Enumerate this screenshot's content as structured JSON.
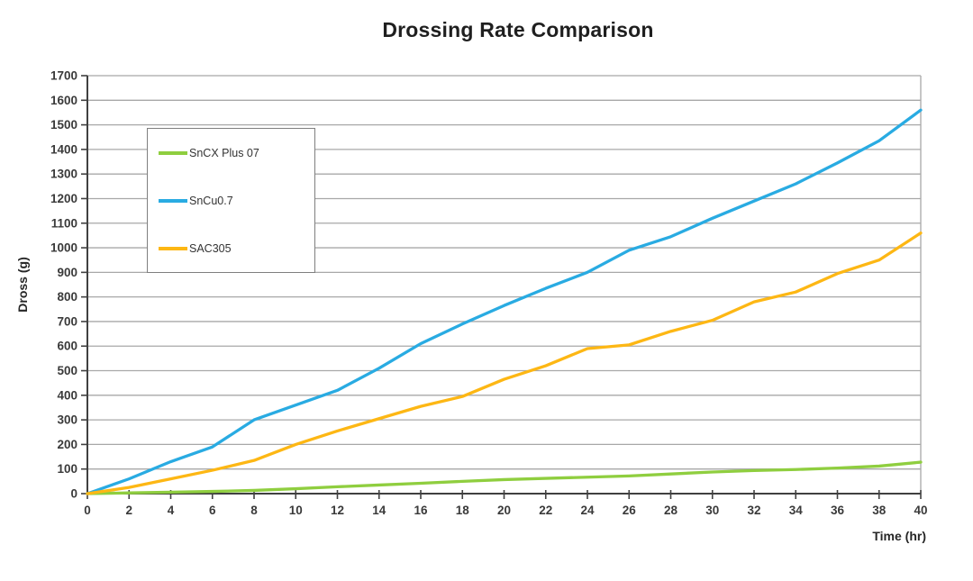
{
  "header": {
    "title": "Drossing Rate Comparison"
  },
  "colors": {
    "background": "#ffffff",
    "title_text": "#1f1f1f",
    "axis_line": "#404040",
    "gridline": "#a8a8a8",
    "tick_text": "#3a3a3a",
    "legend_border": "#7f7f7f",
    "series_green": "#8fce3f",
    "series_blue": "#29abe2",
    "series_orange": "#fdb714"
  },
  "chart_data": {
    "type": "line",
    "title": "Drossing Rate Comparison",
    "xlabel": "Time (hr)",
    "ylabel": "Dross (g)",
    "xlim": [
      0,
      40
    ],
    "ylim": [
      0,
      1700
    ],
    "grid": "horizontal",
    "legend_position": "upper-left-inside",
    "x_ticks": [
      0,
      2,
      4,
      6,
      8,
      10,
      12,
      14,
      16,
      18,
      20,
      22,
      24,
      26,
      28,
      30,
      32,
      34,
      36,
      38,
      40
    ],
    "y_ticks": [
      0,
      100,
      200,
      300,
      400,
      500,
      600,
      700,
      800,
      900,
      1000,
      1100,
      1200,
      1300,
      1400,
      1500,
      1600,
      1700
    ],
    "x": [
      0,
      2,
      4,
      6,
      8,
      10,
      12,
      14,
      16,
      18,
      20,
      22,
      24,
      26,
      28,
      30,
      32,
      34,
      36,
      38,
      40
    ],
    "series": [
      {
        "name": "SnCX Plus 07",
        "color": "#8fce3f",
        "values": [
          0,
          3,
          6,
          9,
          13,
          20,
          28,
          35,
          42,
          50,
          57,
          62,
          67,
          72,
          80,
          88,
          94,
          98,
          104,
          112,
          128
        ]
      },
      {
        "name": "SnCu0.7",
        "color": "#29abe2",
        "values": [
          0,
          60,
          130,
          190,
          300,
          360,
          420,
          510,
          610,
          690,
          765,
          835,
          900,
          990,
          1045,
          1120,
          1190,
          1260,
          1345,
          1435,
          1560
        ]
      },
      {
        "name": "SAC305",
        "color": "#fdb714",
        "values": [
          0,
          25,
          60,
          95,
          135,
          200,
          255,
          305,
          355,
          395,
          465,
          520,
          590,
          605,
          660,
          705,
          780,
          820,
          895,
          950,
          1060
        ]
      }
    ]
  }
}
